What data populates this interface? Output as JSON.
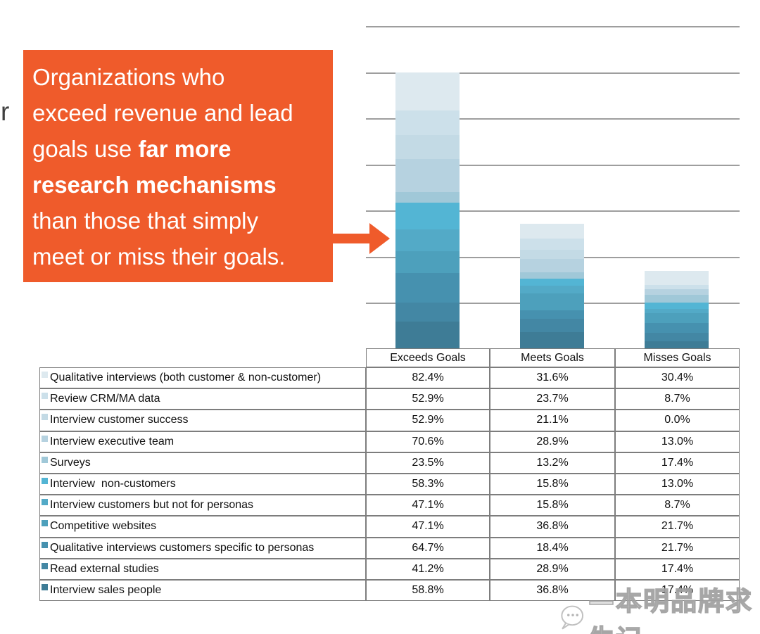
{
  "page": {
    "background": "#ffffff",
    "left_text_fragment": "r",
    "watermark": {
      "icon": "face-logo-icon",
      "text": "—本明品牌求生记",
      "color": "#b0b0b0"
    }
  },
  "callout": {
    "background_color": "#EF5B2B",
    "text_color": "#ffffff",
    "full_text": "Organizations who exceed revenue and lead goals use far more research mechanisms than those that simply meet or miss their goals.",
    "bold_text": "far more research mechanisms",
    "lines": [
      [
        {
          "t": "Organizations who",
          "b": false
        }
      ],
      [
        {
          "t": "exceed revenue and lead",
          "b": false
        }
      ],
      [
        {
          "t": "goals use ",
          "b": false
        },
        {
          "t": "far more",
          "b": true
        }
      ],
      [
        {
          "t": "research mechanisms",
          "b": true
        }
      ],
      [
        {
          "t": "than those that simply",
          "b": false
        }
      ],
      [
        {
          "t": "meet or miss their goals.",
          "b": false
        }
      ]
    ]
  },
  "chart_data": {
    "type": "bar",
    "stacked": true,
    "title": "",
    "categories": [
      "Exceeds Goals",
      "Meets Goals",
      "Misses Goals"
    ],
    "series": [
      {
        "name": "Qualitative interviews (both customer & non-customer)",
        "color": "#dde9ef",
        "values": [
          82.4,
          31.6,
          30.4
        ]
      },
      {
        "name": "Review CRM/MA data",
        "color": "#cce0ea",
        "values": [
          52.9,
          23.7,
          8.7
        ]
      },
      {
        "name": "Interview customer success",
        "color": "#c3dae5",
        "values": [
          52.9,
          21.1,
          0.0
        ]
      },
      {
        "name": "Interview executive team",
        "color": "#b6d2e0",
        "values": [
          70.6,
          28.9,
          13.0
        ]
      },
      {
        "name": "Surveys",
        "color": "#a0c8d8",
        "values": [
          23.5,
          13.2,
          17.4
        ]
      },
      {
        "name": "Interview  non-customers",
        "color": "#53b5d4",
        "values": [
          58.3,
          15.8,
          13.0
        ]
      },
      {
        "name": "Interview customers but not for personas",
        "color": "#53aac7",
        "values": [
          47.1,
          15.8,
          8.7
        ]
      },
      {
        "name": "Competitive websites",
        "color": "#4da0bc",
        "values": [
          47.1,
          36.8,
          21.7
        ]
      },
      {
        "name": "Qualitative interviews customers specific to personas",
        "color": "#4691af",
        "values": [
          64.7,
          18.4,
          21.7
        ]
      },
      {
        "name": "Read external studies",
        "color": "#4387a4",
        "values": [
          41.2,
          28.9,
          17.4
        ]
      },
      {
        "name": "Interview sales people",
        "color": "#3e7c96",
        "values": [
          58.8,
          36.8,
          17.4
        ]
      }
    ],
    "ylim": [
      0,
      700
    ],
    "gridline_step": 100,
    "grid": true,
    "legend_position": "table-rows-left",
    "value_format": "percent_one_decimal",
    "grid_color": "#9e9e9e",
    "table_border_color": "#7d7d7d"
  }
}
